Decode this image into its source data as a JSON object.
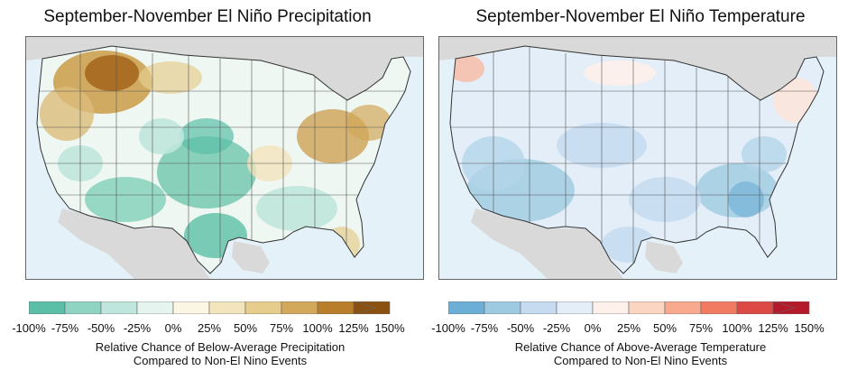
{
  "left": {
    "title": "September-November El Niño Precipitation",
    "caption_line1": "Relative Chance of Below-Average Precipitation",
    "caption_line2": "Compared to Non-El Nino Events",
    "colors": [
      "#5bbfa8",
      "#8fd3c2",
      "#bfe6dc",
      "#e6f4f0",
      "#fbf6e4",
      "#f2e4bd",
      "#e6cd8e",
      "#d2a85a",
      "#b87e2a",
      "#8a5110"
    ],
    "ticks": [
      "-100%",
      "-75%",
      "-50%",
      "-25%",
      "0%",
      "25%",
      "50%",
      "75%",
      "100%",
      "125%",
      "150%"
    ]
  },
  "right": {
    "title": "September-November El Niño Temperature",
    "caption_line1": "Relative Chance of Above-Average Temperature",
    "caption_line2": "Compared to Non-El Nino Events",
    "colors": [
      "#6baed6",
      "#9ecae1",
      "#c6dbef",
      "#e3eef8",
      "#fdf0ea",
      "#fcd5c2",
      "#f9a98d",
      "#f07b62",
      "#dd4a45",
      "#b51a2b"
    ],
    "ticks": [
      "-100%",
      "-75%",
      "-50%",
      "-25%",
      "0%",
      "25%",
      "50%",
      "75%",
      "100%",
      "125%",
      "150%"
    ]
  }
}
